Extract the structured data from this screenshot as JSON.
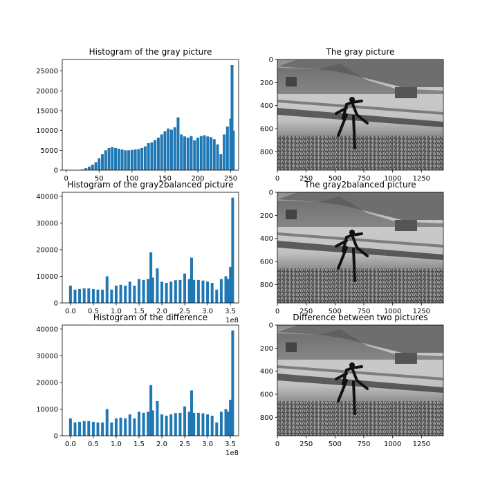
{
  "colors": {
    "bar": "#1f77b4",
    "frame": "#000000"
  },
  "chart_data": [
    {
      "type": "bar",
      "id": "hist-gray",
      "title": "Histogram of the gray picture",
      "xlim": [
        -6,
        262
      ],
      "ylim": [
        0,
        27900
      ],
      "xticks": [
        0,
        50,
        100,
        150,
        200,
        250
      ],
      "xtick_labels": [
        "0",
        "50",
        "100",
        "150",
        "200",
        "250"
      ],
      "yticks": [
        0,
        5000,
        10000,
        15000,
        20000,
        25000
      ],
      "ytick_labels": [
        "0",
        "5000",
        "10000",
        "15000",
        "20000",
        "25000"
      ],
      "x_offset_label": "",
      "bins_x": [
        0,
        5,
        10,
        15,
        20,
        25,
        30,
        35,
        40,
        45,
        50,
        55,
        60,
        65,
        70,
        75,
        80,
        85,
        90,
        95,
        100,
        105,
        110,
        115,
        120,
        125,
        130,
        135,
        140,
        145,
        150,
        155,
        160,
        165,
        170,
        175,
        180,
        185,
        190,
        195,
        200,
        205,
        210,
        215,
        220,
        225,
        230,
        235,
        240,
        245,
        250,
        252,
        254
      ],
      "values": [
        0,
        0,
        0,
        0,
        50,
        200,
        500,
        900,
        1400,
        2000,
        3000,
        4000,
        5000,
        5600,
        5800,
        5600,
        5400,
        5200,
        5000,
        5000,
        5100,
        5200,
        5300,
        5600,
        6000,
        6800,
        7000,
        7600,
        8200,
        9000,
        9800,
        10500,
        10200,
        10800,
        13300,
        9000,
        8500,
        8200,
        8600,
        7500,
        8200,
        8600,
        8800,
        8500,
        8300,
        7800,
        6500,
        4000,
        9000,
        11000,
        13000,
        26500,
        10000
      ],
      "bar_width": 4
    },
    {
      "type": "image",
      "id": "img-gray",
      "title": "The gray picture",
      "xlim": [
        0,
        1440
      ],
      "ylim": [
        960,
        0
      ],
      "xticks": [
        0,
        250,
        500,
        750,
        1000,
        1250
      ],
      "xtick_labels": [
        "0",
        "250",
        "500",
        "750",
        "1000",
        "1250"
      ],
      "yticks": [
        0,
        200,
        400,
        600,
        800
      ],
      "ytick_labels": [
        "0",
        "200",
        "400",
        "600",
        "800"
      ]
    },
    {
      "type": "bar",
      "id": "hist-balanced",
      "title": "Histogram of the gray2balanced picture",
      "xlim": [
        -18000000.0,
        368000000.0
      ],
      "ylim": [
        0,
        41500
      ],
      "xticks": [
        0,
        50000000,
        100000000,
        150000000,
        200000000,
        250000000,
        300000000,
        350000000
      ],
      "xtick_labels": [
        "0.0",
        "0.5",
        "1.0",
        "1.5",
        "2.0",
        "2.5",
        "3.0",
        "3.5"
      ],
      "yticks": [
        0,
        10000,
        20000,
        30000,
        40000
      ],
      "ytick_labels": [
        "0",
        "10000",
        "20000",
        "30000",
        "40000"
      ],
      "x_offset_label": "1e8",
      "bins_x": [
        0,
        10000000,
        20000000,
        30000000,
        40000000,
        50000000,
        60000000,
        70000000,
        80000000,
        90000000,
        100000000,
        110000000,
        120000000,
        130000000,
        140000000,
        150000000,
        160000000,
        170000000,
        176000000,
        180000000,
        190000000,
        200000000,
        210000000,
        220000000,
        230000000,
        240000000,
        250000000,
        260000000,
        265000000,
        270000000,
        280000000,
        290000000,
        300000000,
        310000000,
        320000000,
        330000000,
        340000000,
        345000000,
        350000000,
        355000000
      ],
      "values": [
        6500,
        5000,
        5200,
        5500,
        5500,
        5200,
        5000,
        5000,
        10000,
        5000,
        6500,
        6800,
        6500,
        8000,
        6500,
        9000,
        8600,
        9000,
        19000,
        9500,
        13000,
        8000,
        7500,
        8000,
        8500,
        8600,
        11000,
        9000,
        17000,
        8600,
        8600,
        8400,
        8000,
        7500,
        5000,
        9000,
        10000,
        9000,
        13500,
        39500
      ],
      "bar_width": 4
    },
    {
      "type": "image",
      "id": "img-balanced",
      "title": "The gray2balanced picture",
      "xlim": [
        0,
        1440
      ],
      "ylim": [
        960,
        0
      ],
      "xticks": [
        0,
        250,
        500,
        750,
        1000,
        1250
      ],
      "xtick_labels": [
        "0",
        "250",
        "500",
        "750",
        "1000",
        "1250"
      ],
      "yticks": [
        0,
        200,
        400,
        600,
        800
      ],
      "ytick_labels": [
        "0",
        "200",
        "400",
        "600",
        "800"
      ]
    },
    {
      "type": "bar",
      "id": "hist-diff",
      "title": "Histogram of the difference",
      "xlim": [
        -18000000.0,
        368000000.0
      ],
      "ylim": [
        0,
        41500
      ],
      "xticks": [
        0,
        50000000,
        100000000,
        150000000,
        200000000,
        250000000,
        300000000,
        350000000
      ],
      "xtick_labels": [
        "0.0",
        "0.5",
        "1.0",
        "1.5",
        "2.0",
        "2.5",
        "3.0",
        "3.5"
      ],
      "yticks": [
        0,
        10000,
        20000,
        30000,
        40000
      ],
      "ytick_labels": [
        "0",
        "10000",
        "20000",
        "30000",
        "40000"
      ],
      "x_offset_label": "1e8",
      "bins_x": [
        0,
        10000000,
        20000000,
        30000000,
        40000000,
        50000000,
        60000000,
        70000000,
        80000000,
        90000000,
        100000000,
        110000000,
        120000000,
        130000000,
        140000000,
        150000000,
        160000000,
        170000000,
        176000000,
        180000000,
        190000000,
        200000000,
        210000000,
        220000000,
        230000000,
        240000000,
        250000000,
        260000000,
        265000000,
        270000000,
        280000000,
        290000000,
        300000000,
        310000000,
        320000000,
        330000000,
        340000000,
        345000000,
        350000000,
        355000000
      ],
      "values": [
        6500,
        5000,
        5200,
        5500,
        5500,
        5200,
        5000,
        5000,
        10000,
        5000,
        6500,
        6800,
        6500,
        8000,
        6500,
        9000,
        8600,
        9000,
        19000,
        9500,
        13000,
        8000,
        7500,
        8000,
        8500,
        8600,
        11000,
        9000,
        17000,
        8600,
        8600,
        8400,
        8000,
        7500,
        5000,
        9000,
        10000,
        9000,
        13500,
        39500
      ],
      "bar_width": 4
    },
    {
      "type": "image",
      "id": "img-diff",
      "title": "Difference between two pictures",
      "xlim": [
        0,
        1440
      ],
      "ylim": [
        960,
        0
      ],
      "xticks": [
        0,
        250,
        500,
        750,
        1000,
        1250
      ],
      "xtick_labels": [
        "0",
        "250",
        "500",
        "750",
        "1000",
        "1250"
      ],
      "yticks": [
        0,
        200,
        400,
        600,
        800
      ],
      "ytick_labels": [
        "0",
        "200",
        "400",
        "600",
        "800"
      ]
    }
  ]
}
